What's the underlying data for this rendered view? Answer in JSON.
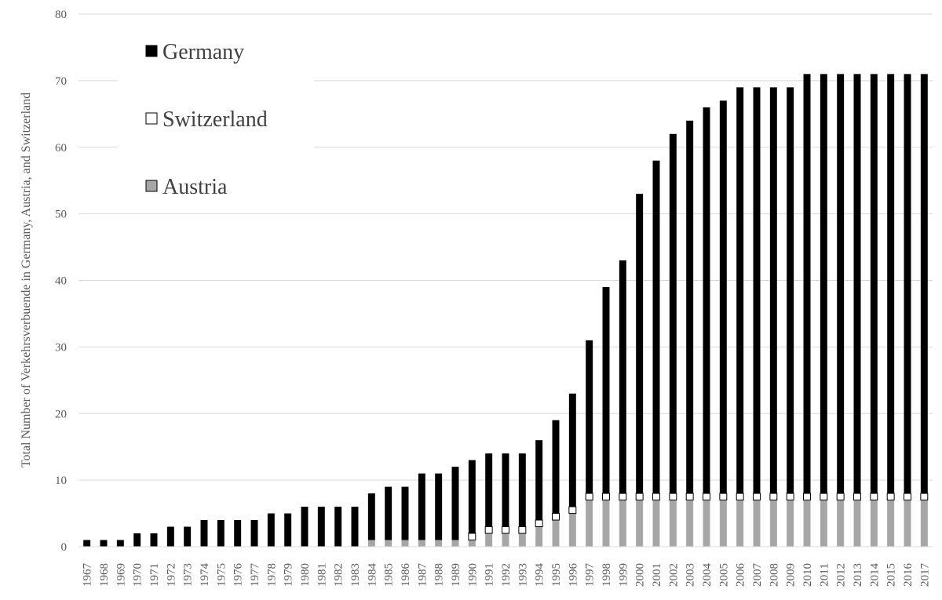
{
  "chart_data": {
    "type": "bar",
    "stacked": true,
    "ylabel": "Total Number of Verkehrsverbuende in Germany, Austria, and Switzerland",
    "ylim": [
      0,
      80
    ],
    "yticks": [
      0,
      10,
      20,
      30,
      40,
      50,
      60,
      70,
      80
    ],
    "grid": true,
    "legend_position": "top-left",
    "categories": [
      "1967",
      "1968",
      "1969",
      "1970",
      "1971",
      "1972",
      "1973",
      "1974",
      "1975",
      "1976",
      "1977",
      "1978",
      "1979",
      "1980",
      "1981",
      "1982",
      "1983",
      "1984",
      "1985",
      "1986",
      "1987",
      "1988",
      "1989",
      "1990",
      "1991",
      "1992",
      "1993",
      "1994",
      "1995",
      "1996",
      "1997",
      "1998",
      "1999",
      "2000",
      "2001",
      "2002",
      "2003",
      "2004",
      "2005",
      "2006",
      "2007",
      "2008",
      "2009",
      "2010",
      "2011",
      "2012",
      "2013",
      "2014",
      "2015",
      "2016",
      "2017"
    ],
    "series": [
      {
        "name": "Austria",
        "color": "#a6a6a6",
        "values": [
          0,
          0,
          0,
          0,
          0,
          0,
          0,
          0,
          0,
          0,
          0,
          0,
          0,
          0,
          0,
          0,
          0,
          1,
          1,
          1,
          1,
          1,
          1,
          1,
          2,
          2,
          2,
          3,
          4,
          5,
          7,
          7,
          7,
          7,
          7,
          7,
          7,
          7,
          7,
          7,
          7,
          7,
          7,
          7,
          7,
          7,
          7,
          7,
          7,
          7,
          7
        ]
      },
      {
        "name": "Switzerland",
        "color": "#ffffff",
        "values": [
          0,
          0,
          0,
          0,
          0,
          0,
          0,
          0,
          0,
          0,
          0,
          0,
          0,
          0,
          0,
          0,
          0,
          0,
          0,
          0,
          0,
          0,
          0,
          1,
          1,
          1,
          1,
          1,
          1,
          1,
          1,
          1,
          1,
          1,
          1,
          1,
          1,
          1,
          1,
          1,
          1,
          1,
          1,
          1,
          1,
          1,
          1,
          1,
          1,
          1,
          1
        ]
      },
      {
        "name": "Germany",
        "color": "#000000",
        "values": [
          1,
          1,
          1,
          2,
          2,
          3,
          3,
          4,
          4,
          4,
          4,
          5,
          5,
          6,
          6,
          6,
          6,
          7,
          8,
          8,
          10,
          10,
          11,
          11,
          11,
          11,
          11,
          12,
          14,
          17,
          23,
          31,
          35,
          45,
          50,
          54,
          56,
          58,
          59,
          61,
          61,
          61,
          61,
          63,
          63,
          63,
          63,
          63,
          63,
          63,
          63
        ]
      }
    ],
    "legend": [
      "Germany",
      "Switzerland",
      "Austria"
    ]
  }
}
